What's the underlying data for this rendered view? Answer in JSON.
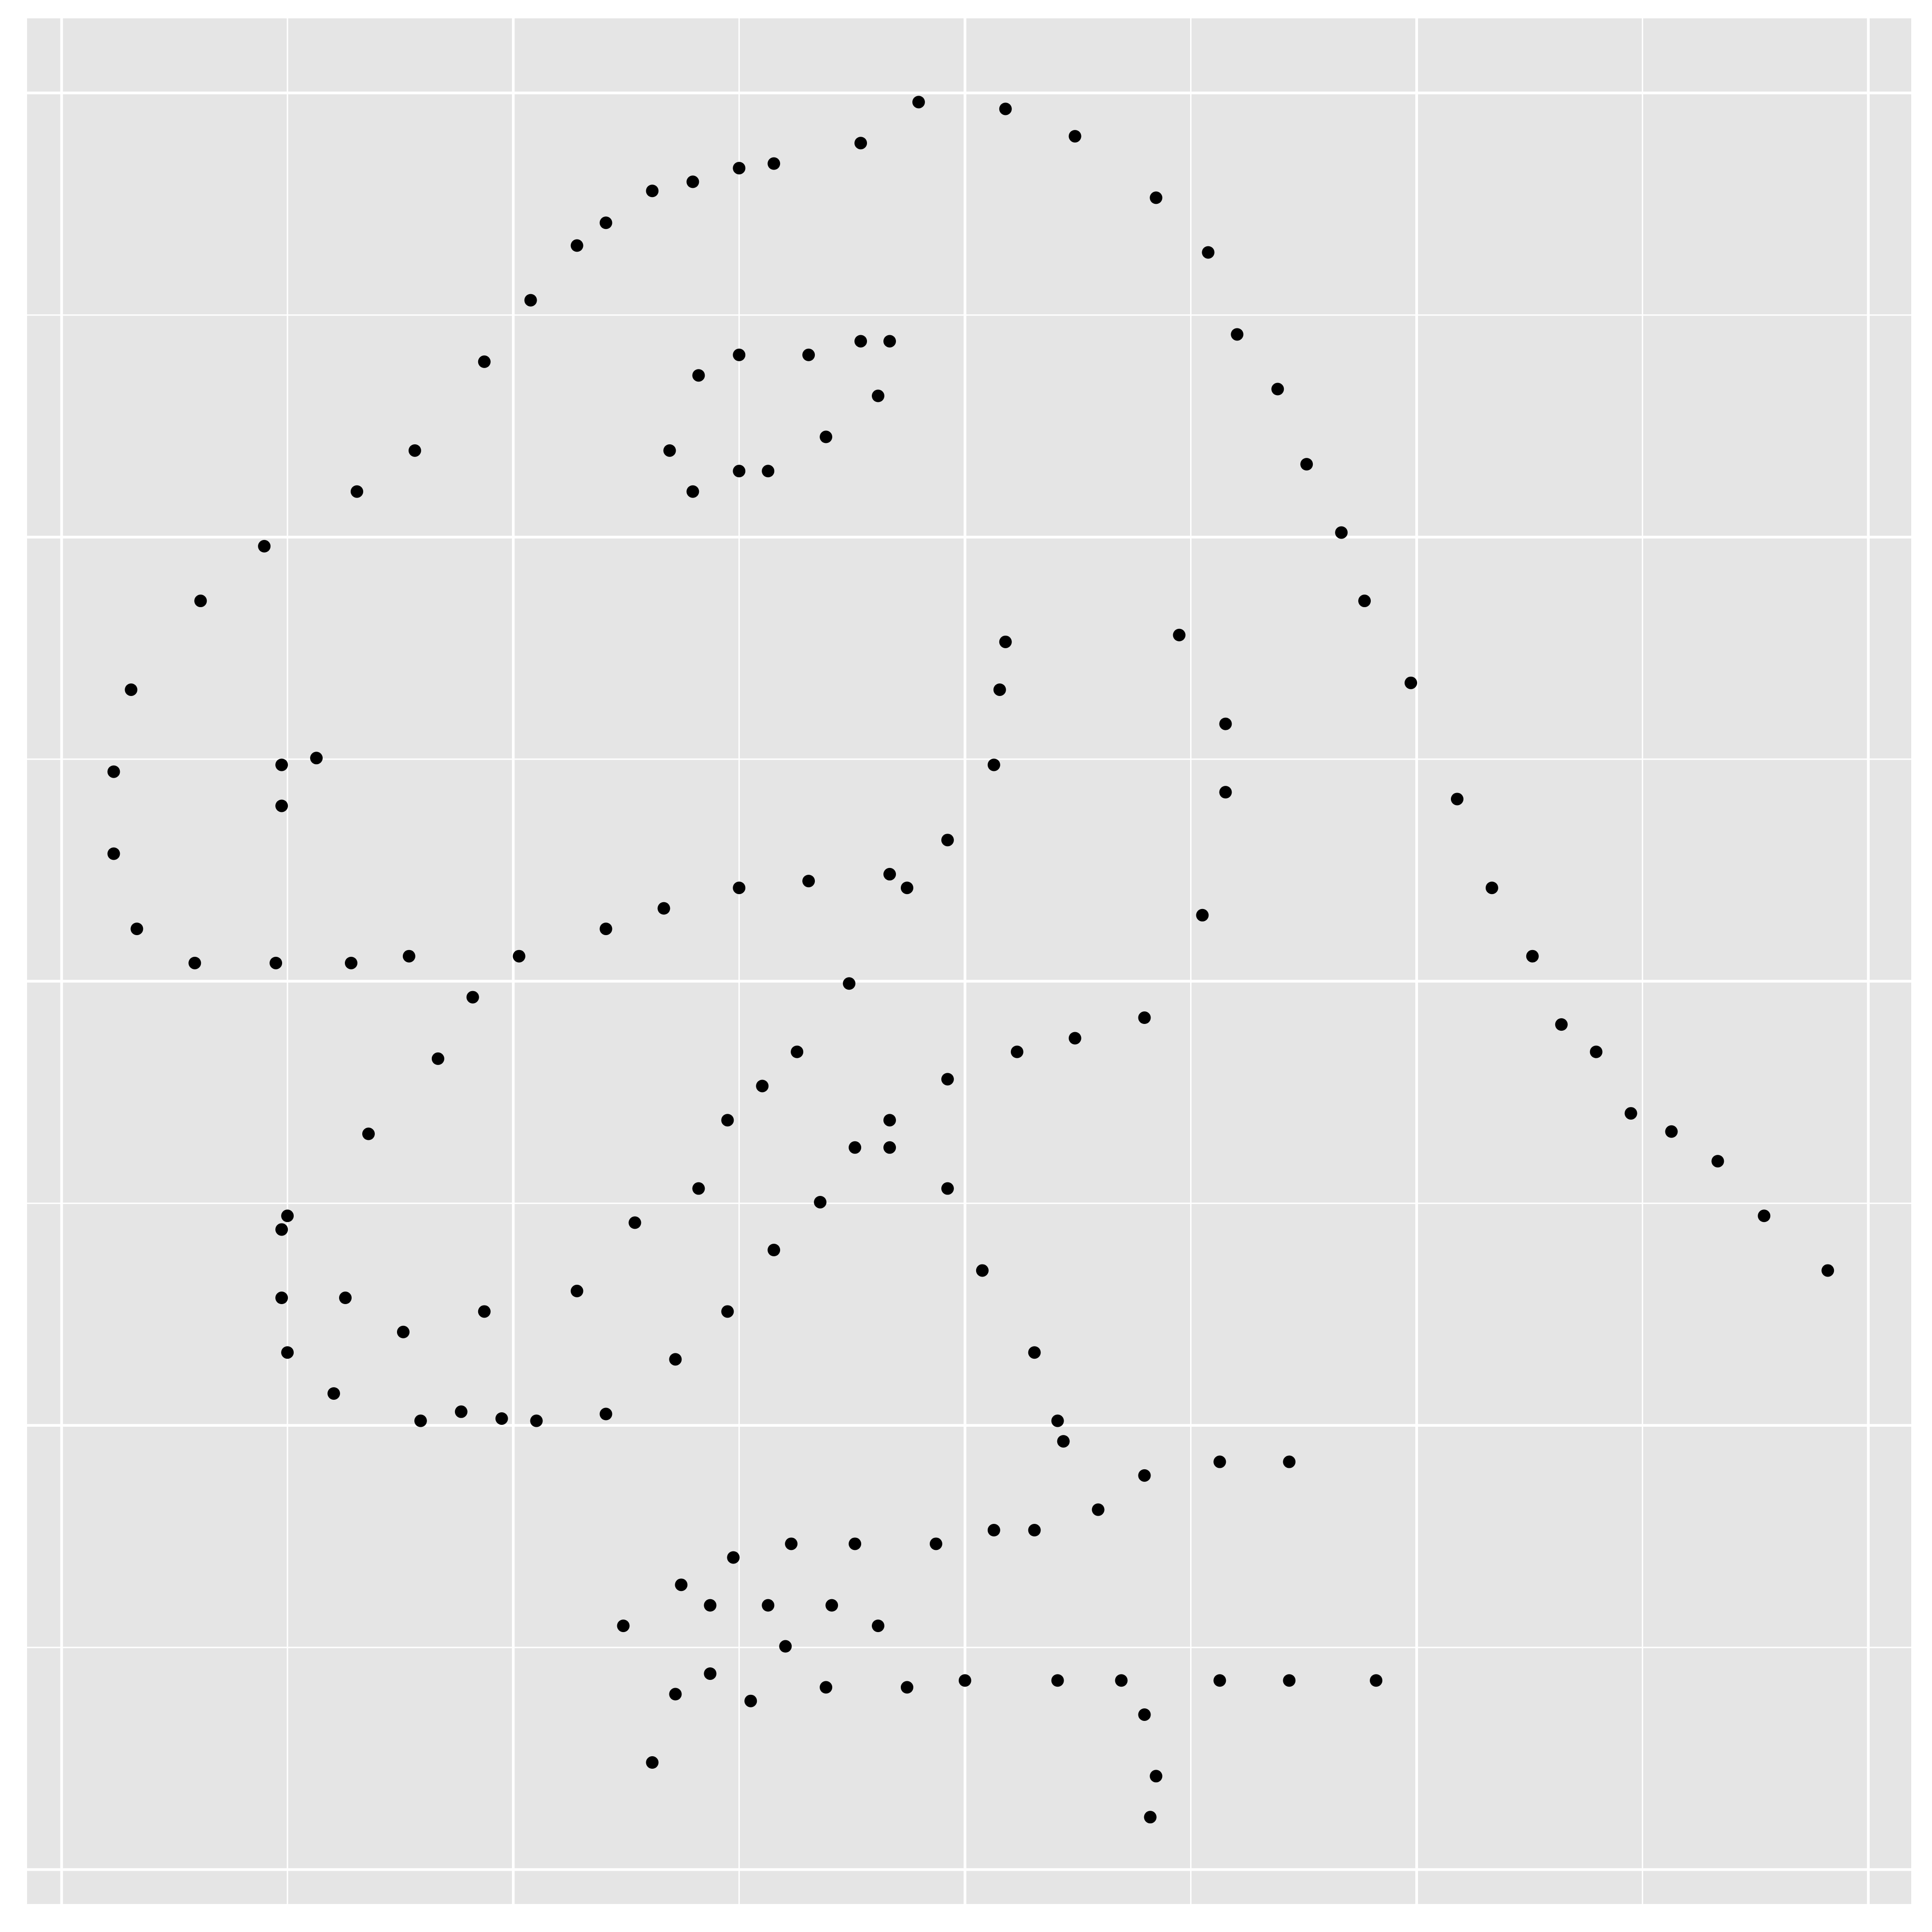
{
  "chart_data": {
    "type": "scatter",
    "color": "#000000",
    "grid": true,
    "xlim": [
      18.47,
      101.9
    ],
    "ylim": [
      -1.94,
      104.2
    ],
    "xticks": [
      20,
      40,
      60,
      80,
      100
    ],
    "xminor": [
      30,
      50,
      70,
      90
    ],
    "yticks": [
      0,
      25,
      50,
      75,
      100
    ],
    "yminor": [
      12.5,
      37.5,
      62.5,
      87.5
    ],
    "x": [
      55.3846,
      51.5385,
      46.1538,
      42.8205,
      40.7692,
      38.7179,
      35.641,
      33.0769,
      28.9744,
      26.1538,
      23.0769,
      22.3077,
      22.3077,
      23.3333,
      25.8974,
      29.4872,
      32.8205,
      35.3846,
      40.2564,
      44.1026,
      46.6667,
      50.0,
      53.0769,
      56.6667,
      59.2308,
      61.2821,
      61.5385,
      61.7949,
      57.4359,
      54.8718,
      52.5641,
      48.2051,
      49.4872,
      51.0256,
      45.3846,
      42.8205,
      38.7179,
      35.1282,
      32.5641,
      30.0,
      33.5897,
      36.6667,
      38.2051,
      29.7436,
      29.7436,
      30.0,
      32.0513,
      35.8974,
      41.0256,
      44.1026,
      47.1795,
      49.4872,
      51.5385,
      53.5897,
      55.1282,
      56.6667,
      59.2308,
      62.3077,
      64.8718,
      67.9487,
      70.5128,
      71.5385,
      71.5385,
      69.4872,
      46.9231,
      48.2051,
      50.0,
      53.0769,
      55.3846,
      56.6667,
      56.1538,
      53.8462,
      51.2821,
      50.0,
      47.9487,
      29.7436,
      29.7436,
      31.2821,
      57.9487,
      61.7949,
      64.8718,
      68.4615,
      70.7692,
      72.0513,
      73.8462,
      75.1282,
      76.6667,
      77.6923,
      79.7436,
      81.7949,
      83.3333,
      85.1282,
      86.4103,
      87.9487,
      89.4872,
      93.3333,
      95.3846,
      98.2051,
      56.6667,
      59.2308,
      60.7692,
      63.0769,
      64.1026,
      64.359,
      74.359,
      71.2821,
      67.9487,
      65.8974,
      63.0769,
      61.2821,
      58.7179,
      55.1282,
      52.3077,
      49.7436,
      47.4359,
      44.8718,
      48.7179,
      51.2821,
      54.1026,
      56.1538,
      52.0513,
      48.7179,
      47.1795,
      46.1538,
      50.5128,
      53.8462,
      57.4359,
      60.0,
      64.1026,
      66.9231,
      71.2821,
      74.359,
      78.2051,
      67.9487,
      68.4615,
      68.2051,
      37.6923,
      39.4872,
      91.2821,
      50.0,
      47.9487,
      44.1026
    ],
    "values": [
      97.1795,
      96.0256,
      94.4872,
      91.4103,
      88.3333,
      84.8718,
      79.8718,
      77.5641,
      74.4872,
      71.4103,
      66.4103,
      61.7949,
      57.1795,
      52.9487,
      51.0256,
      51.0256,
      51.0256,
      51.4103,
      51.4103,
      52.9487,
      54.1026,
      55.2564,
      55.641,
      56.0256,
      57.9487,
      62.1795,
      66.4103,
      69.1026,
      55.2564,
      49.8718,
      46.0256,
      38.3333,
      42.1795,
      44.1026,
      36.4103,
      32.5641,
      31.4103,
      30.2564,
      32.1795,
      36.7949,
      41.4103,
      45.641,
      49.1026,
      36.0256,
      32.1795,
      29.1026,
      26.7949,
      25.2564,
      25.2564,
      25.641,
      28.718,
      31.4103,
      34.8718,
      37.5641,
      40.641,
      42.1795,
      44.4872,
      46.0256,
      46.7949,
      47.9487,
      53.718,
      60.641,
      64.4872,
      69.4872,
      79.8718,
      84.1026,
      85.2564,
      85.2564,
      86.0256,
      86.0256,
      82.9487,
      80.641,
      78.718,
      78.718,
      77.5641,
      59.8718,
      62.1795,
      62.5641,
      99.4872,
      99.1026,
      97.5641,
      94.1026,
      91.0256,
      86.4103,
      83.3333,
      79.1026,
      75.2564,
      71.4103,
      66.7949,
      60.2564,
      55.2564,
      51.4103,
      47.5641,
      46.0256,
      42.5641,
      39.8718,
      36.7949,
      33.718,
      40.641,
      38.3333,
      33.718,
      29.1026,
      25.2564,
      24.1026,
      22.9487,
      22.9487,
      22.1795,
      20.2564,
      19.1026,
      19.1026,
      18.3333,
      18.3333,
      18.3333,
      17.5641,
      16.0256,
      13.718,
      14.8718,
      14.8718,
      14.8718,
      13.718,
      12.5641,
      11.0256,
      9.8718,
      6.0256,
      9.4872,
      10.2564,
      10.2564,
      10.641,
      10.641,
      10.641,
      10.641,
      10.641,
      10.641,
      8.718,
      5.2564,
      2.9487,
      25.7692,
      25.3846,
      41.5385,
      95.7692,
      95.0,
      92.6923
    ]
  }
}
